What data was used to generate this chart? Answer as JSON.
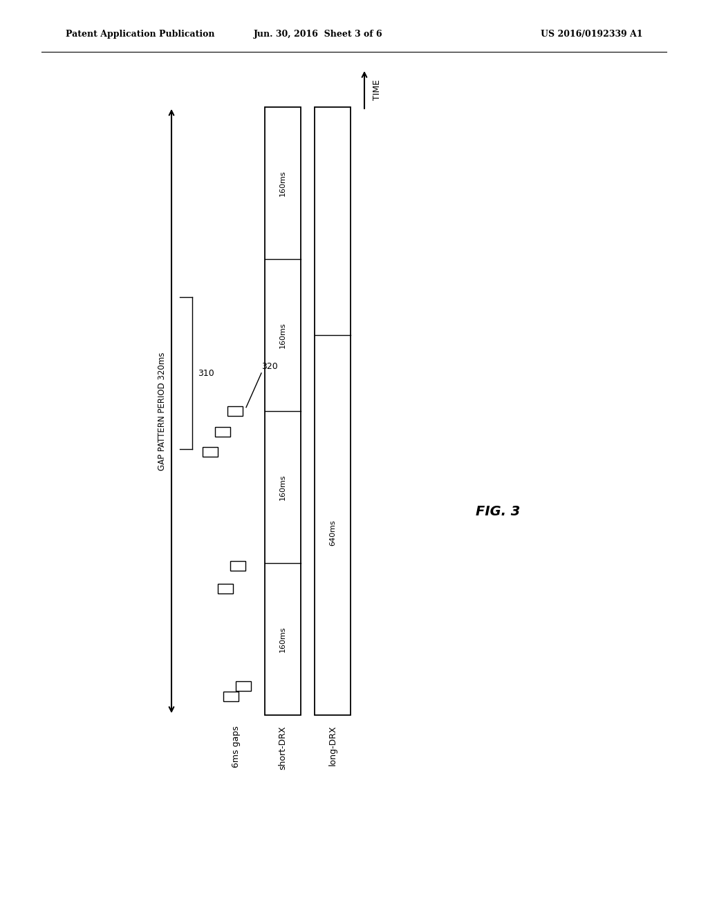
{
  "header_left": "Patent Application Publication",
  "header_center": "Jun. 30, 2016  Sheet 3 of 6",
  "header_right": "US 2016/0192339 A1",
  "fig_label": "FIG. 3",
  "time_label": "TIME",
  "gap_pattern_label": "GAP PATTERN PERIOD 320ms",
  "label_6ms": "6ms gaps",
  "label_short_drx": "short-DRX",
  "label_long_drx": "long-DRX",
  "label_310": "310",
  "label_320": "320",
  "long_drx_label": "640ms",
  "background_color": "#ffffff",
  "text_color": "#000000"
}
